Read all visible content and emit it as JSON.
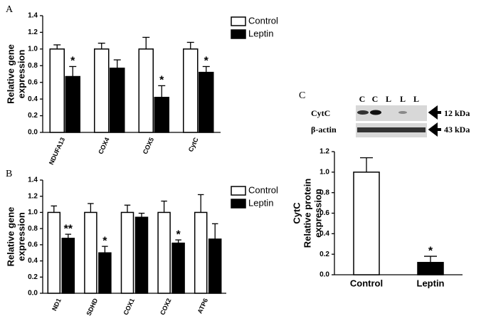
{
  "chart_data": [
    {
      "type": "bar",
      "panel": "A",
      "ylabel": [
        "Relative gene",
        "expression"
      ],
      "categories": [
        "NDUFA13",
        "COX4",
        "COX5",
        "CytC"
      ],
      "series": [
        {
          "name": "Control",
          "color": "#ffffff",
          "values": [
            1.0,
            1.0,
            1.0,
            1.0
          ],
          "errors": [
            0.05,
            0.07,
            0.14,
            0.08
          ],
          "significance": [
            null,
            null,
            null,
            null
          ]
        },
        {
          "name": "Leptin",
          "color": "#000000",
          "values": [
            0.67,
            0.77,
            0.42,
            0.72
          ],
          "errors": [
            0.12,
            0.1,
            0.14,
            0.07
          ],
          "significance": [
            "*",
            null,
            "*",
            "*"
          ]
        }
      ],
      "ylim": [
        0,
        1.4
      ],
      "yticks": [
        {
          "value": 0,
          "label": "0.0"
        },
        0.2,
        0.4,
        0.6,
        0.8,
        {
          "value": 1,
          "label": "1.0"
        },
        1.2,
        1.4
      ],
      "legend": "right"
    },
    {
      "type": "bar",
      "panel": "B",
      "ylabel": [
        "Relative gene",
        "expression"
      ],
      "categories": [
        "ND1",
        "SDHD",
        "COX1",
        "COX2",
        "ATP6"
      ],
      "series": [
        {
          "name": "Control",
          "color": "#ffffff",
          "values": [
            1.0,
            1.0,
            1.0,
            1.0,
            1.0
          ],
          "errors": [
            0.08,
            0.11,
            0.09,
            0.14,
            0.22
          ],
          "significance": [
            null,
            null,
            null,
            null,
            null
          ]
        },
        {
          "name": "Leptin",
          "color": "#000000",
          "values": [
            0.68,
            0.5,
            0.94,
            0.62,
            0.67
          ],
          "errors": [
            0.05,
            0.08,
            0.05,
            0.04,
            0.19
          ],
          "significance": [
            "**",
            "*",
            null,
            "*",
            null
          ]
        }
      ],
      "ylim": [
        0,
        1.4
      ],
      "yticks": [
        {
          "value": 0,
          "label": "0.0"
        },
        0.2,
        0.4,
        0.6,
        0.8,
        {
          "value": 1,
          "label": "1.0"
        },
        1.2,
        1.4
      ],
      "legend": "right"
    },
    {
      "type": "bar",
      "panel": "C",
      "ylabel": [
        "CytC",
        "Relative protein",
        "expression"
      ],
      "categories": [
        "Control",
        "Leptin"
      ],
      "colors": [
        "#ffffff",
        "#000000"
      ],
      "values": [
        1.0,
        0.12
      ],
      "errors": [
        0.14,
        0.06
      ],
      "significance": [
        null,
        "*"
      ],
      "ylim": [
        0,
        1.2
      ],
      "yticks": [
        {
          "value": 0,
          "label": "0.0"
        },
        0.2,
        0.4,
        0.6,
        0.8,
        {
          "value": 1,
          "label": "1.0"
        },
        1.2
      ],
      "blot": {
        "lanes": [
          "C",
          "C",
          "L",
          "L",
          "L"
        ],
        "rows": [
          {
            "label": "CytC",
            "size": "12 kDa"
          },
          {
            "label": "β-actin",
            "size": "43 kDa"
          }
        ]
      }
    }
  ]
}
